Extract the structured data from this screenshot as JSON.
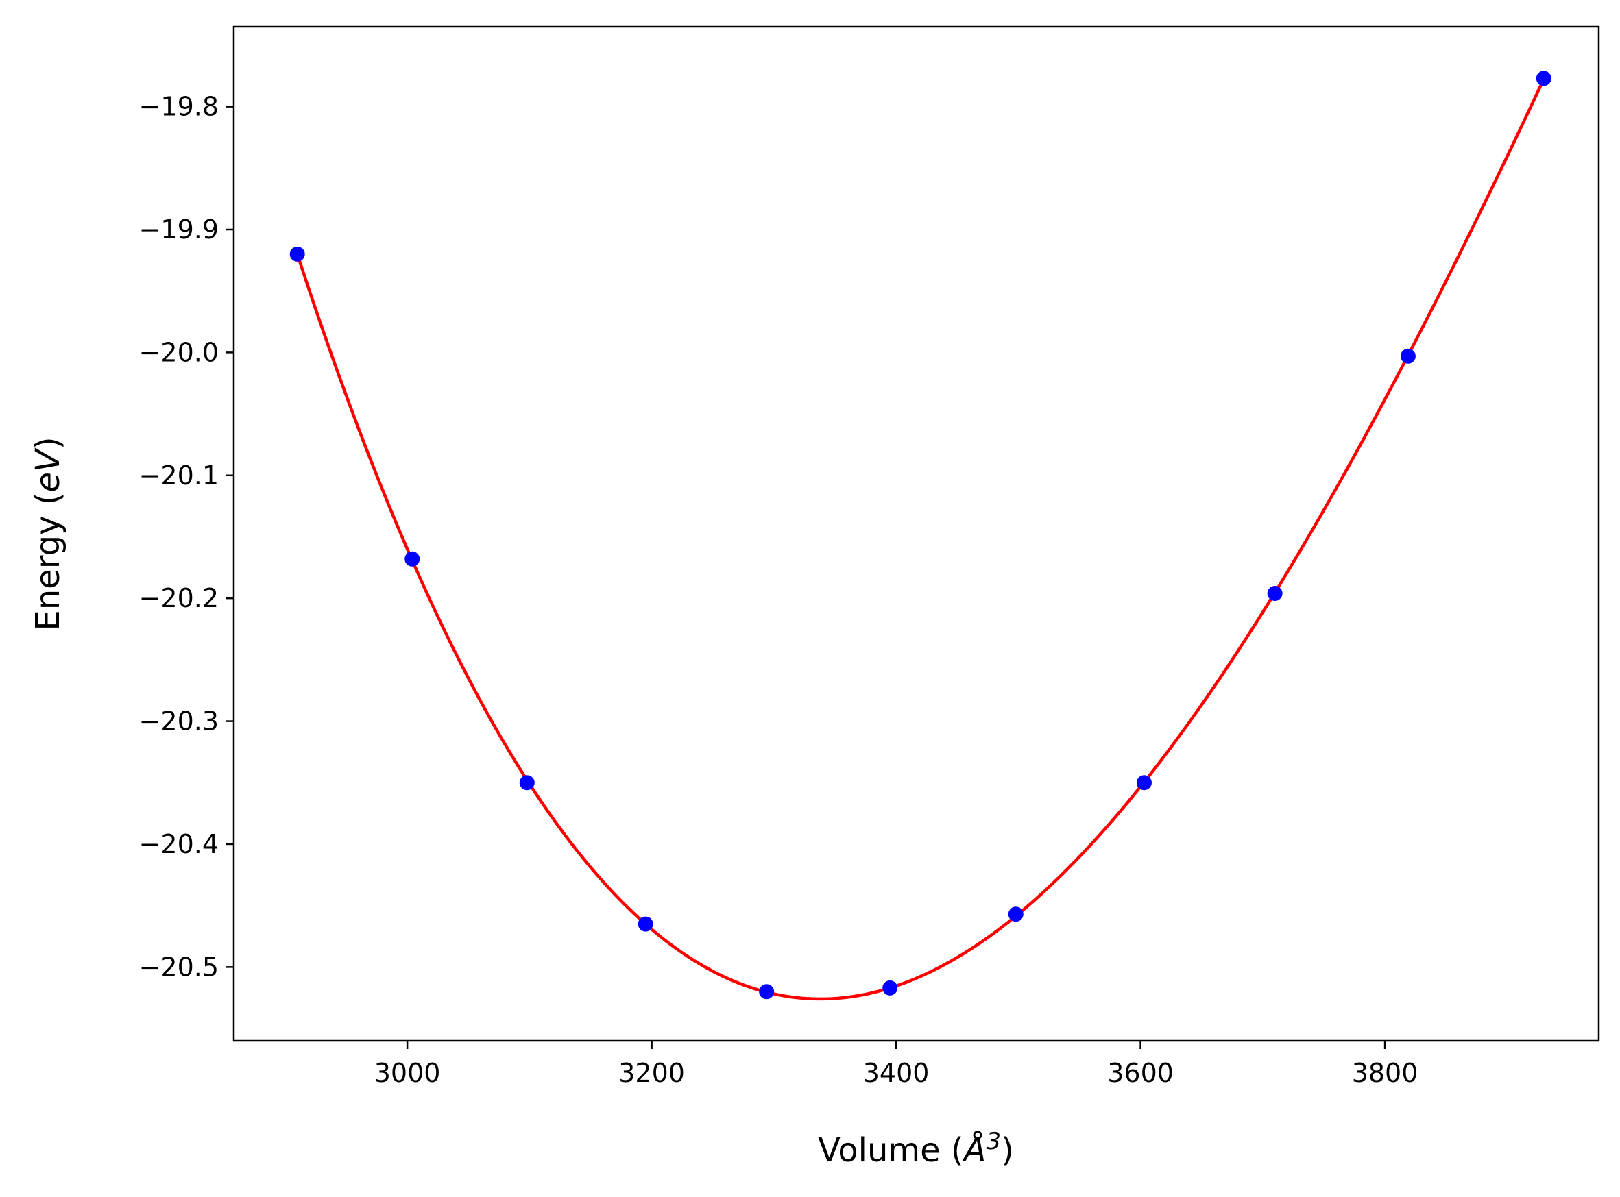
{
  "chart_data": {
    "type": "scatter",
    "title": "",
    "xlabel": {
      "prefix": "Volume (",
      "symbol": "Å",
      "sup": "3",
      "suffix": ")"
    },
    "ylabel": {
      "prefix": "Energy (",
      "unit": "eV",
      "suffix": ")"
    },
    "xlim": [
      2858,
      3975
    ],
    "ylim": [
      -20.56,
      -19.735
    ],
    "xticks": [
      3000,
      3200,
      3400,
      3600,
      3800
    ],
    "xtick_labels": [
      "3000",
      "3200",
      "3400",
      "3600",
      "3800"
    ],
    "yticks": [
      -19.8,
      -19.9,
      -20.0,
      -20.1,
      -20.2,
      -20.3,
      -20.4,
      -20.5
    ],
    "ytick_labels": [
      "−19.8",
      "−19.9",
      "−20.0",
      "−20.1",
      "−20.2",
      "−20.3",
      "−20.4",
      "−20.5"
    ],
    "grid": false,
    "series": [
      {
        "kind": "points",
        "color": "#0000ff",
        "x": [
          2910,
          3004,
          3098,
          3195,
          3294,
          3395,
          3498,
          3603,
          3710,
          3819,
          3930
        ],
        "y": [
          -19.92,
          -20.168,
          -20.35,
          -20.465,
          -20.52,
          -20.517,
          -20.457,
          -20.35,
          -20.196,
          -20.003,
          -19.777
        ]
      },
      {
        "kind": "fit-line",
        "color": "#ff0000"
      }
    ]
  }
}
